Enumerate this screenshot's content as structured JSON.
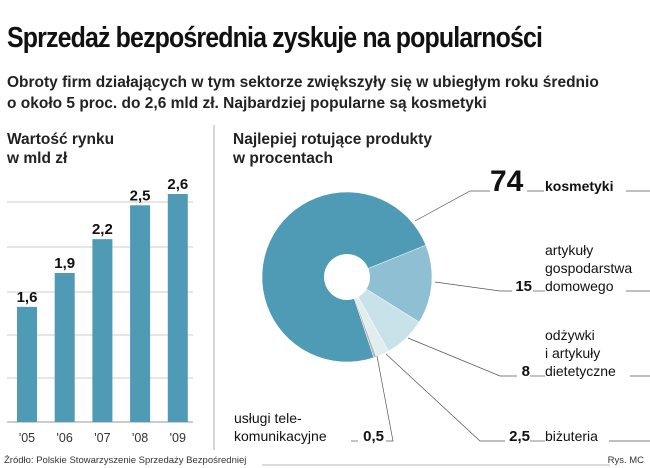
{
  "title": "Sprzedaż bezpośrednia zyskuje na popularności",
  "subtitle_lines": [
    "Obroty firm działających w tym sektorze zwiększyły się w ubiegłym roku średnio",
    "o około 5 proc. do 2,6 mld zł. Najbardziej popularne są kosmetyki"
  ],
  "source": "Źródło: Polskie Stowarzyszenie Sprzedaży Bezpośredniej",
  "credit": "Rys. MC",
  "chart_data": [
    {
      "type": "bar",
      "title_lines": [
        "Wartość rynku",
        "w mld zł"
      ],
      "categories": [
        "'05",
        "'06",
        "'07",
        "'08",
        "'09"
      ],
      "values": [
        1.6,
        1.9,
        2.2,
        2.5,
        2.6
      ],
      "labels": [
        "1,6",
        "1,9",
        "2,2",
        "2,5",
        "2,6"
      ],
      "ylim": [
        0.58,
        2.8
      ],
      "grid": true,
      "color": "#4f9ab5"
    },
    {
      "type": "pie",
      "donut": true,
      "title_lines": [
        "Najlepiej rotujące produkty",
        "w procentach"
      ],
      "slices": [
        {
          "label_lines": [
            "artykuły",
            "gospodarstwa",
            "domowego"
          ],
          "value": 15,
          "value_label": "15",
          "color": "#8fbfd2"
        },
        {
          "label_lines": [
            "odżywki",
            "i artykuły",
            "dietetyczne"
          ],
          "value": 8,
          "value_label": "8",
          "color": "#c9e2ea"
        },
        {
          "label_lines": [
            "biżuteria"
          ],
          "value": 2.5,
          "value_label": "2,5",
          "color": "#e2edf0"
        },
        {
          "label_lines": [
            "usługi tele-",
            "komunikacyjne"
          ],
          "value": 0.5,
          "value_label": "0,5",
          "color": "#b5b5b5"
        },
        {
          "label_lines": [
            "kosmetyki"
          ],
          "value": 74,
          "value_label": "74",
          "color": "#4f9ab5"
        }
      ]
    }
  ]
}
